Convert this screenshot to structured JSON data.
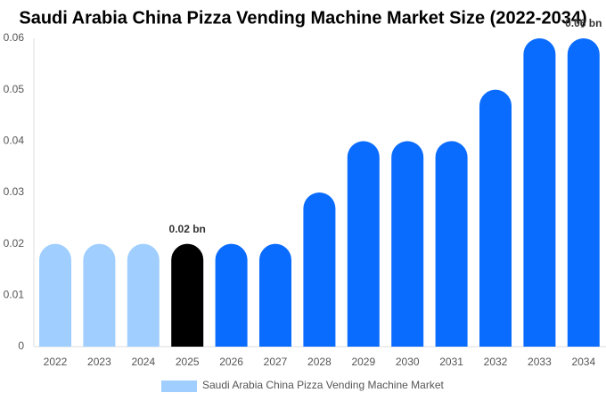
{
  "chart_data": {
    "type": "bar",
    "title": "Saudi Arabia China Pizza Vending Machine Market Size (2022-2034)",
    "categories": [
      "2022",
      "2023",
      "2024",
      "2025",
      "2026",
      "2027",
      "2028",
      "2029",
      "2030",
      "2031",
      "2032",
      "2033",
      "2034"
    ],
    "series": [
      {
        "name": "Saudi Arabia China Pizza Vending Machine Market",
        "color": "#a0cfff",
        "values": [
          0.02,
          0.02,
          0.02,
          0.02,
          0.02,
          0.02,
          0.03,
          0.04,
          0.04,
          0.04,
          0.05,
          0.06,
          0.06
        ],
        "value_labels": [
          null,
          null,
          null,
          "0.02 bn",
          null,
          null,
          null,
          null,
          null,
          null,
          null,
          null,
          "0.06 bn"
        ],
        "colors": [
          "#a0cfff",
          "#a0cfff",
          "#a0cfff",
          "#000000",
          "#0a6cff",
          "#0a6cff",
          "#0a6cff",
          "#0a6cff",
          "#0a6cff",
          "#0a6cff",
          "#0a6cff",
          "#0a6cff",
          "#0a6cff"
        ]
      }
    ],
    "ylim": [
      0,
      0.06
    ],
    "yticks": [
      0,
      0.01,
      0.02,
      0.03,
      0.04,
      0.05,
      0.06
    ],
    "grid": false
  }
}
